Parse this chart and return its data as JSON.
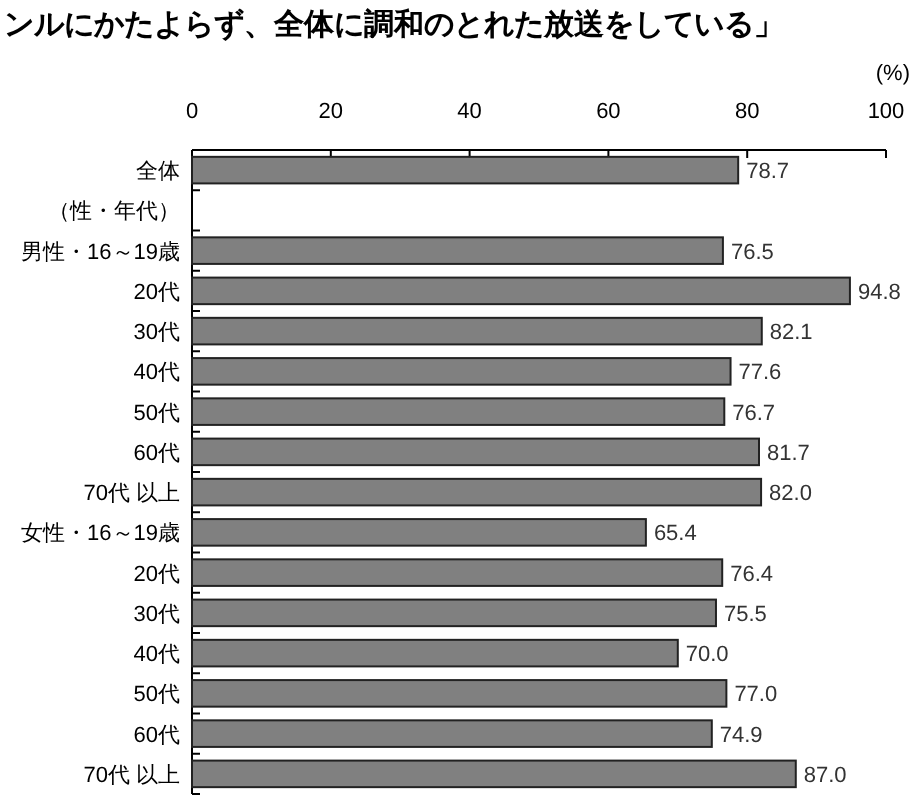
{
  "chart_data": {
    "type": "bar",
    "orientation": "horizontal",
    "title": "ンルにかたよらず、全体に調和のとれた放送をしている」",
    "xlabel": "(%)",
    "categories": [
      "全体",
      "（性・年代）",
      "男性・16～19歳",
      "20代",
      "30代",
      "40代",
      "50代",
      "60代",
      "70代 以上",
      "女性・16～19歳",
      "20代",
      "30代",
      "40代",
      "50代",
      "60代",
      "70代 以上"
    ],
    "values": [
      78.7,
      null,
      76.5,
      94.8,
      82.1,
      77.6,
      76.7,
      81.7,
      82.0,
      65.4,
      76.4,
      75.5,
      70.0,
      77.0,
      74.9,
      87.0
    ],
    "value_labels": [
      "78.7",
      null,
      "76.5",
      "94.8",
      "82.1",
      "77.6",
      "76.7",
      "81.7",
      "82.0",
      "65.4",
      "76.4",
      "75.5",
      "70.0",
      "77.0",
      "74.9",
      "87.0"
    ],
    "color": "#808080",
    "xlim": [
      0,
      100
    ],
    "xticks": [
      0,
      20,
      40,
      60,
      80,
      100
    ]
  }
}
